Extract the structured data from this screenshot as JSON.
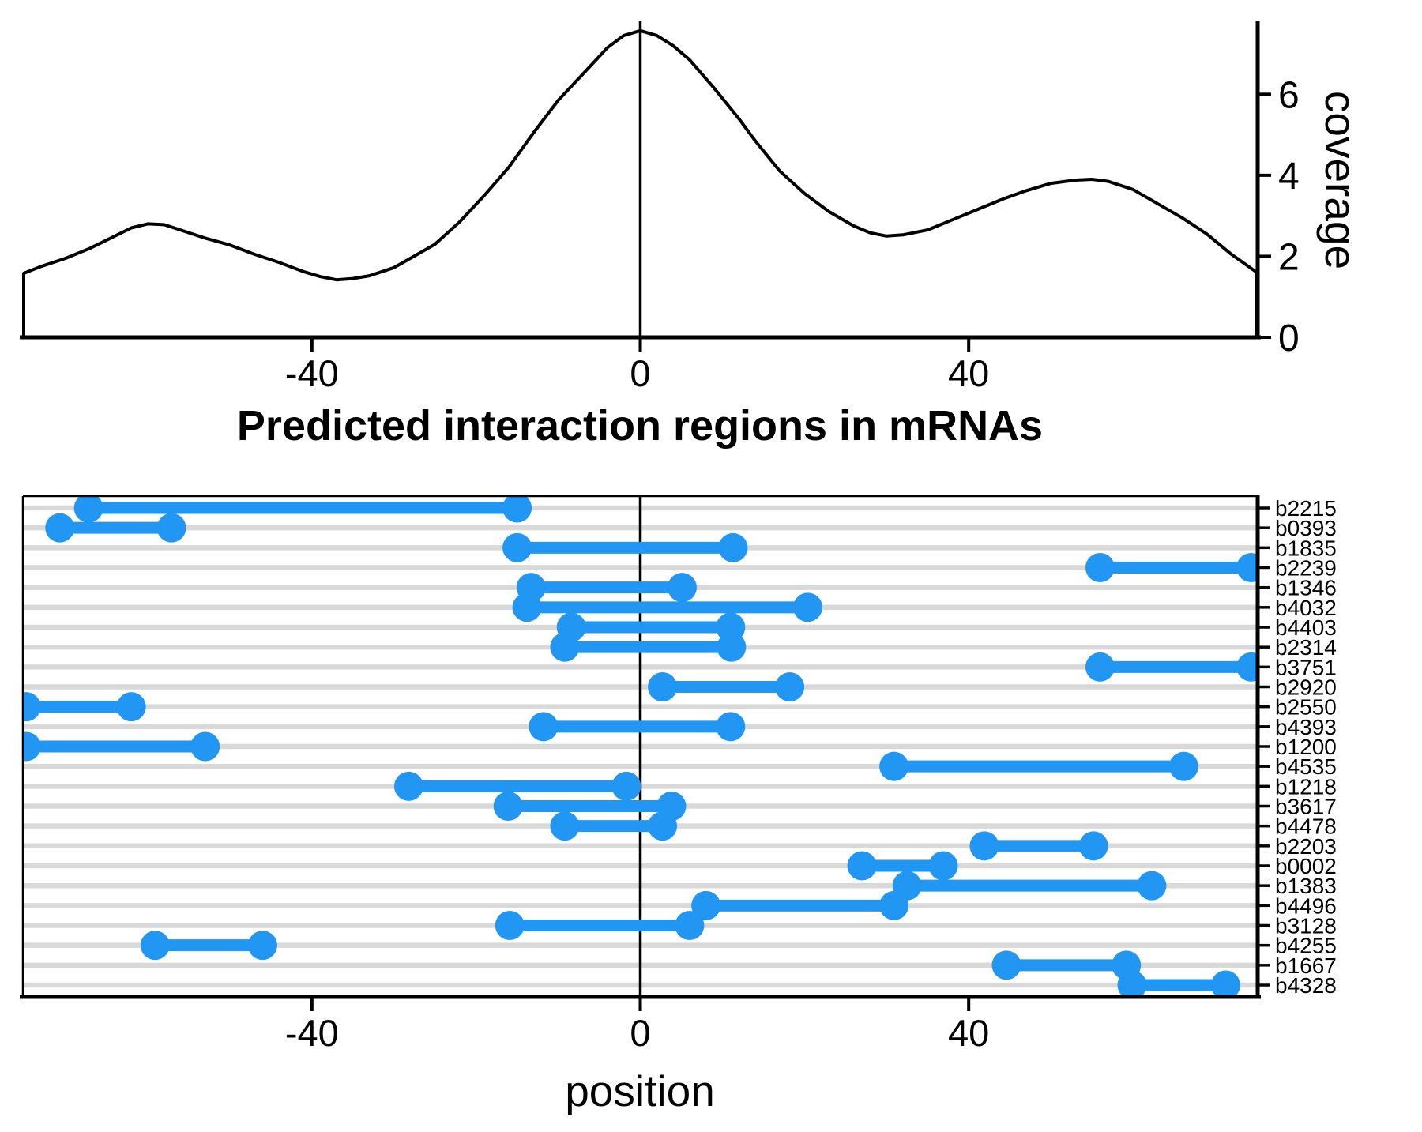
{
  "figure": {
    "background": "#ffffff"
  },
  "colors": {
    "curve": "#000000",
    "axis": "#000000",
    "segment": "#2196F3",
    "gridline": "#D9D9D9",
    "zero_line": "#000000"
  },
  "chart_data": [
    {
      "id": "coverage_density",
      "type": "area",
      "ylabel": "coverage",
      "xlim": [
        -75.2,
        75.2
      ],
      "ylim": [
        0,
        7.8
      ],
      "xticks": [
        -40,
        0,
        40
      ],
      "yticks": [
        0,
        2,
        4,
        6
      ],
      "zero_line_x": 0,
      "grid": false,
      "legend": "none",
      "curve": {
        "x": [
          -75.1,
          -73,
          -70,
          -67,
          -64,
          -62,
          -60,
          -58,
          -56,
          -53,
          -50,
          -47,
          -44,
          -41,
          -39,
          -37,
          -35,
          -33,
          -30,
          -28,
          -25,
          -22,
          -19,
          -16,
          -13,
          -10,
          -7,
          -4,
          -2,
          0,
          2,
          4,
          6,
          9,
          12,
          14,
          17,
          20,
          23,
          26,
          28,
          30,
          32,
          35,
          38,
          41,
          44,
          47,
          50,
          53,
          55,
          57,
          60,
          63,
          66,
          69,
          72,
          75.1
        ],
        "y": [
          1.58,
          1.75,
          1.95,
          2.2,
          2.5,
          2.7,
          2.8,
          2.78,
          2.65,
          2.45,
          2.28,
          2.05,
          1.85,
          1.62,
          1.5,
          1.42,
          1.45,
          1.52,
          1.72,
          1.95,
          2.3,
          2.85,
          3.5,
          4.2,
          5.05,
          5.85,
          6.5,
          7.15,
          7.45,
          7.57,
          7.45,
          7.2,
          6.85,
          6.15,
          5.4,
          4.85,
          4.1,
          3.55,
          3.1,
          2.75,
          2.58,
          2.5,
          2.53,
          2.65,
          2.9,
          3.15,
          3.4,
          3.62,
          3.8,
          3.88,
          3.9,
          3.85,
          3.65,
          3.3,
          2.95,
          2.55,
          2.05,
          1.6
        ]
      }
    },
    {
      "id": "interaction_regions",
      "type": "range",
      "title": "Predicted interaction regions in mRNAs",
      "xlabel": "position",
      "xlim": [
        -75.2,
        75.2
      ],
      "xticks": [
        -40,
        0,
        40
      ],
      "zero_line_x": 0,
      "grid": "horizontal",
      "rows": [
        {
          "label": "b2215",
          "start": -67.2,
          "end": -15.0
        },
        {
          "label": "b0393",
          "start": -70.7,
          "end": -57.1
        },
        {
          "label": "b1835",
          "start": -15.0,
          "end": 11.3
        },
        {
          "label": "b2239",
          "start": 56.0,
          "end": 74.4
        },
        {
          "label": "b1346",
          "start": -13.3,
          "end": 5.1
        },
        {
          "label": "b4032",
          "start": -13.8,
          "end": 20.4
        },
        {
          "label": "b4403",
          "start": -8.4,
          "end": 11.0
        },
        {
          "label": "b2314",
          "start": -9.2,
          "end": 11.1
        },
        {
          "label": "b3751",
          "start": 56.0,
          "end": 74.4
        },
        {
          "label": "b2920",
          "start": 2.7,
          "end": 18.2
        },
        {
          "label": "b2550",
          "start": -74.8,
          "end": -62.0
        },
        {
          "label": "b4393",
          "start": -11.8,
          "end": 11.0
        },
        {
          "label": "b1200",
          "start": -74.8,
          "end": -53.0
        },
        {
          "label": "b4535",
          "start": 30.9,
          "end": 66.2
        },
        {
          "label": "b1218",
          "start": -28.2,
          "end": -1.7
        },
        {
          "label": "b3617",
          "start": -16.1,
          "end": 3.8
        },
        {
          "label": "b4478",
          "start": -9.2,
          "end": 2.7
        },
        {
          "label": "b2203",
          "start": 41.9,
          "end": 55.2
        },
        {
          "label": "b0002",
          "start": 27.0,
          "end": 36.9
        },
        {
          "label": "b1383",
          "start": 32.5,
          "end": 62.3
        },
        {
          "label": "b4496",
          "start": 8.0,
          "end": 30.9
        },
        {
          "label": "b3128",
          "start": -15.9,
          "end": 6.0
        },
        {
          "label": "b4255",
          "start": -59.1,
          "end": -46.0
        },
        {
          "label": "b1667",
          "start": 44.6,
          "end": 59.2
        },
        {
          "label": "b4328",
          "start": 59.9,
          "end": 71.3
        }
      ]
    }
  ]
}
